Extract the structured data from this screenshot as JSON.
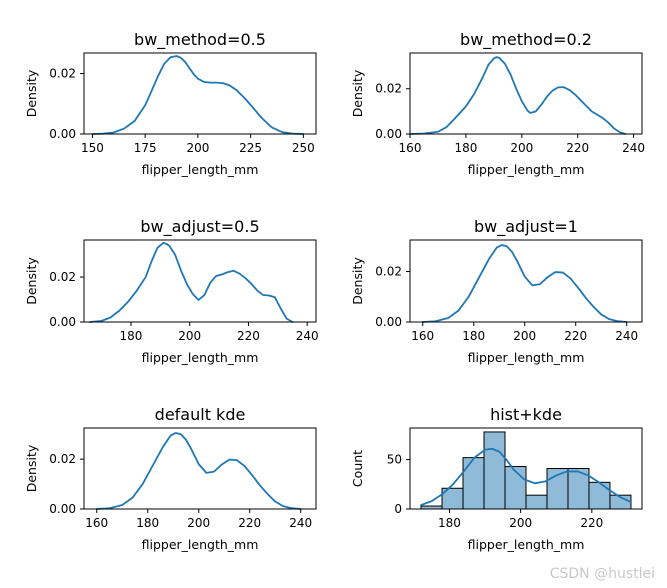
{
  "figure": {
    "watermark": "CSDN @hustlei"
  },
  "chart_data": [
    {
      "type": "line",
      "title": "bw_method=0.5",
      "xlabel": "flipper_length_mm",
      "ylabel": "Density",
      "xlim": [
        146,
        256
      ],
      "ylim": [
        0,
        0.0268
      ],
      "xticks": [
        150,
        175,
        200,
        225,
        250
      ],
      "yticks": [
        0.0,
        0.02
      ],
      "ytick_labels": [
        "0.00",
        "0.02"
      ],
      "series": [
        {
          "name": "kde",
          "x": [
            150,
            155,
            160,
            165,
            170,
            175,
            178,
            181,
            184,
            187,
            190,
            192,
            194,
            196,
            198,
            200,
            203,
            206,
            209,
            212,
            215,
            218,
            222,
            226,
            230,
            235,
            240,
            245,
            250
          ],
          "y": [
            0.0,
            0.0001,
            0.0005,
            0.0018,
            0.0043,
            0.0095,
            0.0142,
            0.019,
            0.0232,
            0.0254,
            0.0258,
            0.0252,
            0.0238,
            0.0218,
            0.0198,
            0.0183,
            0.0172,
            0.017,
            0.017,
            0.0168,
            0.0161,
            0.0147,
            0.012,
            0.0088,
            0.0055,
            0.0022,
            0.0006,
            0.0001,
            0.0
          ]
        }
      ]
    },
    {
      "type": "line",
      "title": "bw_method=0.2",
      "xlabel": "flipper_length_mm",
      "ylabel": "Density",
      "xlim": [
        160,
        243
      ],
      "ylim": [
        0,
        0.0358
      ],
      "xticks": [
        160,
        180,
        200,
        220,
        240
      ],
      "yticks": [
        0.0,
        0.02
      ],
      "ytick_labels": [
        "0.00",
        "0.02"
      ],
      "series": [
        {
          "name": "kde",
          "x": [
            160,
            165,
            170,
            173,
            176,
            180,
            183,
            186,
            188,
            190,
            191,
            192,
            194,
            196,
            198,
            200,
            202,
            203,
            205,
            207,
            209,
            211,
            213,
            215,
            217,
            219,
            221,
            223,
            225,
            227,
            229,
            231,
            233,
            235,
            237
          ],
          "y": [
            0.0,
            0.0002,
            0.001,
            0.003,
            0.0068,
            0.0122,
            0.0178,
            0.025,
            0.0305,
            0.0334,
            0.034,
            0.0336,
            0.031,
            0.0262,
            0.02,
            0.0145,
            0.0104,
            0.0093,
            0.01,
            0.013,
            0.0165,
            0.0192,
            0.0206,
            0.0207,
            0.0195,
            0.0175,
            0.015,
            0.0125,
            0.01,
            0.0085,
            0.007,
            0.005,
            0.0025,
            0.0008,
            0.0
          ]
        }
      ]
    },
    {
      "type": "line",
      "title": "bw_adjust=0.5",
      "xlabel": "flipper_length_mm",
      "ylabel": "Density",
      "xlim": [
        164,
        243
      ],
      "ylim": [
        0,
        0.0365
      ],
      "xticks": [
        180,
        200,
        220,
        240
      ],
      "yticks": [
        0.0,
        0.02
      ],
      "ytick_labels": [
        "0.00",
        "0.02"
      ],
      "series": [
        {
          "name": "kde",
          "x": [
            166,
            170,
            173,
            176,
            179,
            182,
            185,
            187,
            189,
            191,
            192,
            193,
            195,
            197,
            199,
            201,
            203,
            205,
            207,
            209,
            211,
            213,
            215,
            217,
            219,
            221,
            223,
            225,
            227,
            229,
            231,
            233,
            235
          ],
          "y": [
            0.0,
            0.0005,
            0.002,
            0.005,
            0.009,
            0.014,
            0.02,
            0.027,
            0.033,
            0.0352,
            0.0348,
            0.034,
            0.03,
            0.023,
            0.017,
            0.0125,
            0.0098,
            0.012,
            0.0175,
            0.0205,
            0.0212,
            0.0222,
            0.0228,
            0.0215,
            0.0195,
            0.017,
            0.014,
            0.012,
            0.0118,
            0.011,
            0.006,
            0.0015,
            0.0
          ]
        }
      ]
    },
    {
      "type": "line",
      "title": "bw_adjust=1",
      "xlabel": "flipper_length_mm",
      "ylabel": "Density",
      "xlim": [
        155,
        246
      ],
      "ylim": [
        0,
        0.0325
      ],
      "xticks": [
        160,
        180,
        200,
        220,
        240
      ],
      "yticks": [
        0.0,
        0.02
      ],
      "ytick_labels": [
        "0.00",
        "0.02"
      ],
      "series": [
        {
          "name": "kde",
          "x": [
            160,
            165,
            170,
            174,
            178,
            182,
            186,
            189,
            191,
            193,
            195,
            197,
            200,
            203,
            206,
            209,
            212,
            215,
            218,
            221,
            224,
            227,
            230,
            233,
            236,
            240
          ],
          "y": [
            0.0,
            0.0003,
            0.0016,
            0.0045,
            0.01,
            0.0175,
            0.025,
            0.0295,
            0.0305,
            0.03,
            0.0278,
            0.0242,
            0.018,
            0.0145,
            0.015,
            0.0178,
            0.0198,
            0.0196,
            0.0172,
            0.0135,
            0.0095,
            0.006,
            0.003,
            0.0012,
            0.0004,
            0.0
          ]
        }
      ]
    },
    {
      "type": "line",
      "title": "default kde",
      "xlabel": "flipper_length_mm",
      "ylabel": "Density",
      "xlim": [
        155,
        246
      ],
      "ylim": [
        0,
        0.0325
      ],
      "xticks": [
        160,
        180,
        200,
        220,
        240
      ],
      "yticks": [
        0.0,
        0.02
      ],
      "ytick_labels": [
        "0.00",
        "0.02"
      ],
      "series": [
        {
          "name": "kde",
          "x": [
            160,
            165,
            170,
            174,
            178,
            182,
            186,
            189,
            191,
            193,
            195,
            197,
            200,
            203,
            206,
            209,
            212,
            215,
            218,
            221,
            224,
            227,
            230,
            233,
            236,
            240
          ],
          "y": [
            0.0,
            0.0003,
            0.0016,
            0.0045,
            0.01,
            0.0175,
            0.025,
            0.0295,
            0.0305,
            0.03,
            0.0278,
            0.0242,
            0.018,
            0.0145,
            0.015,
            0.0178,
            0.0198,
            0.0196,
            0.0172,
            0.0135,
            0.0095,
            0.006,
            0.003,
            0.0012,
            0.0004,
            0.0
          ]
        }
      ]
    },
    {
      "type": "bar",
      "title": "hist+kde",
      "xlabel": "flipper_length_mm",
      "ylabel": "Count",
      "xlim": [
        168.9,
        234.1
      ],
      "ylim": [
        0,
        82
      ],
      "xticks": [
        180,
        200,
        220
      ],
      "yticks": [
        0,
        50
      ],
      "ytick_labels": [
        "0",
        "50"
      ],
      "bins": [
        {
          "start": 172.0,
          "end": 177.9,
          "count": 3
        },
        {
          "start": 177.9,
          "end": 183.8,
          "count": 21
        },
        {
          "start": 183.8,
          "end": 189.7,
          "count": 52
        },
        {
          "start": 189.7,
          "end": 195.6,
          "count": 78
        },
        {
          "start": 195.6,
          "end": 201.5,
          "count": 43
        },
        {
          "start": 201.5,
          "end": 207.4,
          "count": 14
        },
        {
          "start": 207.4,
          "end": 213.3,
          "count": 41
        },
        {
          "start": 213.3,
          "end": 219.2,
          "count": 41
        },
        {
          "start": 219.2,
          "end": 225.1,
          "count": 27
        },
        {
          "start": 225.1,
          "end": 231.0,
          "count": 14
        }
      ],
      "series": [
        {
          "name": "kde",
          "x": [
            172,
            175,
            178,
            181,
            184,
            187,
            190,
            192,
            194,
            196,
            198,
            201,
            204,
            207,
            210,
            213,
            216,
            219,
            222,
            225,
            228,
            231
          ],
          "y": [
            4,
            8,
            15,
            25,
            38,
            52,
            60,
            61,
            58,
            50,
            40,
            30,
            26,
            28,
            34,
            38,
            38,
            34,
            27,
            19,
            12,
            7
          ]
        }
      ]
    }
  ]
}
